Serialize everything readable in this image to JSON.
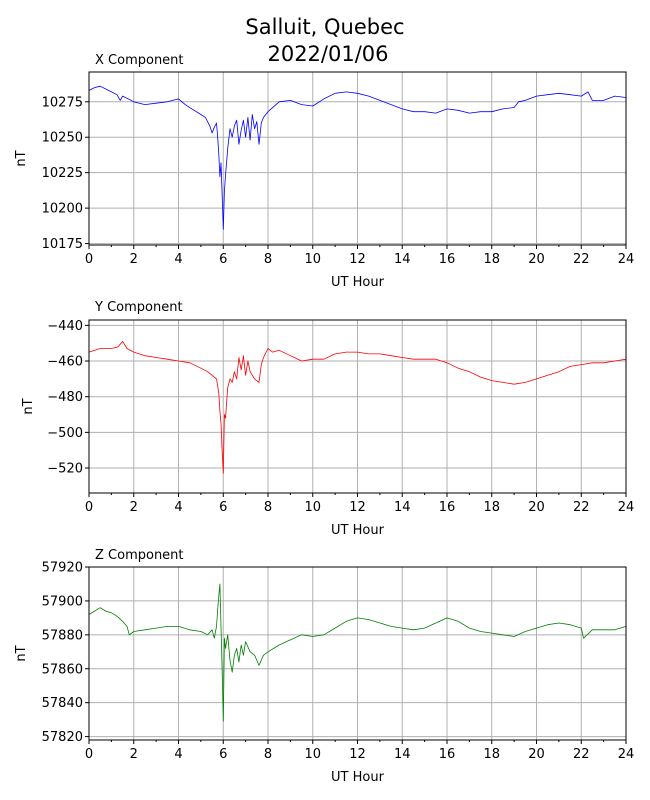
{
  "figure": {
    "title_line1": "Salluit, Quebec",
    "title_line2": "2022/01/06"
  },
  "chart_data": [
    {
      "type": "line",
      "title": "X Component",
      "xlabel": "UT Hour",
      "ylabel": "nT",
      "xlim": [
        0,
        24
      ],
      "ylim": [
        10174,
        10296
      ],
      "xticks": [
        0,
        2,
        4,
        6,
        8,
        10,
        12,
        14,
        16,
        18,
        20,
        22,
        24
      ],
      "yticks": [
        10175,
        10200,
        10225,
        10250,
        10275
      ],
      "grid": true,
      "series": [
        {
          "color": "#0000ff",
          "x": [
            0,
            0.25,
            0.5,
            0.75,
            1.0,
            1.25,
            1.4,
            1.5,
            1.75,
            2.0,
            2.5,
            3.0,
            3.5,
            4.0,
            4.3,
            4.6,
            5.0,
            5.2,
            5.4,
            5.5,
            5.6,
            5.7,
            5.75,
            5.8,
            5.85,
            5.9,
            5.95,
            6.0,
            6.05,
            6.1,
            6.2,
            6.3,
            6.4,
            6.5,
            6.6,
            6.7,
            6.8,
            6.9,
            7.0,
            7.1,
            7.2,
            7.3,
            7.4,
            7.5,
            7.6,
            7.7,
            7.8,
            8.0,
            8.5,
            9.0,
            9.5,
            10.0,
            10.5,
            11.0,
            11.5,
            12.0,
            12.5,
            13.0,
            13.5,
            14.0,
            14.5,
            15.0,
            15.5,
            16.0,
            16.5,
            17.0,
            17.5,
            18.0,
            18.5,
            19.0,
            19.2,
            19.5,
            20.0,
            20.5,
            21.0,
            21.5,
            22.0,
            22.3,
            22.5,
            23.0,
            23.5,
            24.0
          ],
          "values": [
            10283,
            10285,
            10286,
            10284,
            10282,
            10280,
            10276,
            10279,
            10277,
            10275,
            10273,
            10274,
            10275,
            10277,
            10273,
            10270,
            10266,
            10264,
            10258,
            10253,
            10257,
            10260,
            10250,
            10238,
            10222,
            10232,
            10210,
            10185,
            10212,
            10223,
            10242,
            10256,
            10250,
            10258,
            10262,
            10245,
            10255,
            10262,
            10250,
            10264,
            10248,
            10266,
            10256,
            10261,
            10245,
            10260,
            10264,
            10268,
            10275,
            10276,
            10273,
            10272,
            10277,
            10281,
            10282,
            10281,
            10279,
            10276,
            10273,
            10270,
            10268,
            10268,
            10267,
            10270,
            10269,
            10267,
            10268,
            10268,
            10270,
            10271,
            10275,
            10276,
            10279,
            10280,
            10281,
            10280,
            10279,
            10282,
            10276,
            10276,
            10279,
            10278
          ]
        }
      ]
    },
    {
      "type": "line",
      "title": "Y Component",
      "xlabel": "UT Hour",
      "ylabel": "nT",
      "xlim": [
        0,
        24
      ],
      "ylim": [
        -534,
        -437
      ],
      "xticks": [
        0,
        2,
        4,
        6,
        8,
        10,
        12,
        14,
        16,
        18,
        20,
        22,
        24
      ],
      "yticks": [
        -520,
        -500,
        -480,
        -460,
        -440
      ],
      "grid": true,
      "series": [
        {
          "color": "#ff0000",
          "x": [
            0,
            0.5,
            1.0,
            1.3,
            1.5,
            1.7,
            2.0,
            2.5,
            3.0,
            3.5,
            4.0,
            4.5,
            5.0,
            5.3,
            5.5,
            5.7,
            5.8,
            5.85,
            5.9,
            5.95,
            6.0,
            6.05,
            6.1,
            6.2,
            6.3,
            6.4,
            6.5,
            6.6,
            6.7,
            6.8,
            6.9,
            7.0,
            7.1,
            7.2,
            7.4,
            7.6,
            7.7,
            7.8,
            8.0,
            8.2,
            8.5,
            9.0,
            9.5,
            10.0,
            10.5,
            11.0,
            11.5,
            12.0,
            12.5,
            13.0,
            13.5,
            14.0,
            14.5,
            15.0,
            15.5,
            16.0,
            16.5,
            17.0,
            17.5,
            18.0,
            18.5,
            19.0,
            19.5,
            20.0,
            20.5,
            21.0,
            21.5,
            22.0,
            22.5,
            23.0,
            23.5,
            24.0
          ],
          "values": [
            -455,
            -453,
            -453,
            -452,
            -449,
            -453,
            -455,
            -457,
            -458,
            -459,
            -460,
            -461,
            -464,
            -466,
            -468,
            -470,
            -478,
            -488,
            -495,
            -510,
            -523,
            -490,
            -492,
            -475,
            -470,
            -472,
            -466,
            -470,
            -458,
            -465,
            -457,
            -468,
            -460,
            -466,
            -470,
            -472,
            -462,
            -458,
            -453,
            -455,
            -454,
            -457,
            -460,
            -459,
            -459,
            -456,
            -455,
            -455,
            -456,
            -456,
            -457,
            -458,
            -459,
            -459,
            -459,
            -461,
            -464,
            -466,
            -469,
            -471,
            -472,
            -473,
            -472,
            -470,
            -468,
            -466,
            -463,
            -462,
            -461,
            -461,
            -460,
            -459
          ]
        }
      ]
    },
    {
      "type": "line",
      "title": "Z Component",
      "xlabel": "UT Hour",
      "ylabel": "nT",
      "xlim": [
        0,
        24
      ],
      "ylim": [
        57818,
        57920
      ],
      "xticks": [
        0,
        2,
        4,
        6,
        8,
        10,
        12,
        14,
        16,
        18,
        20,
        22,
        24
      ],
      "yticks": [
        57820,
        57840,
        57860,
        57880,
        57900,
        57920
      ],
      "grid": true,
      "series": [
        {
          "color": "#008000",
          "x": [
            0,
            0.25,
            0.5,
            0.75,
            1.0,
            1.25,
            1.5,
            1.7,
            1.8,
            2.0,
            2.5,
            3.0,
            3.5,
            4.0,
            4.5,
            5.0,
            5.3,
            5.5,
            5.6,
            5.7,
            5.75,
            5.8,
            5.85,
            5.9,
            5.95,
            6.0,
            6.05,
            6.1,
            6.2,
            6.3,
            6.4,
            6.5,
            6.6,
            6.7,
            6.8,
            6.9,
            7.0,
            7.2,
            7.4,
            7.6,
            7.8,
            8.0,
            8.5,
            9.0,
            9.5,
            10.0,
            10.5,
            11.0,
            11.5,
            12.0,
            12.5,
            13.0,
            13.5,
            14.0,
            14.5,
            15.0,
            15.5,
            16.0,
            16.5,
            17.0,
            17.5,
            18.0,
            18.5,
            19.0,
            19.5,
            20.0,
            20.5,
            21.0,
            21.5,
            22.0,
            22.1,
            22.5,
            23.0,
            23.5,
            24.0
          ],
          "values": [
            57892,
            57894,
            57896,
            57894,
            57893,
            57891,
            57888,
            57885,
            57880,
            57882,
            57883,
            57884,
            57885,
            57885,
            57883,
            57882,
            57880,
            57883,
            57878,
            57885,
            57895,
            57903,
            57910,
            57885,
            57860,
            57829,
            57878,
            57872,
            57880,
            57865,
            57858,
            57868,
            57872,
            57864,
            57874,
            57868,
            57876,
            57870,
            57868,
            57862,
            57868,
            57870,
            57874,
            57877,
            57880,
            57879,
            57880,
            57884,
            57888,
            57890,
            57889,
            57887,
            57885,
            57884,
            57883,
            57884,
            57887,
            57890,
            57888,
            57884,
            57882,
            57881,
            57880,
            57879,
            57882,
            57884,
            57886,
            57887,
            57886,
            57884,
            57878,
            57883,
            57883,
            57883,
            57885
          ]
        }
      ]
    }
  ]
}
